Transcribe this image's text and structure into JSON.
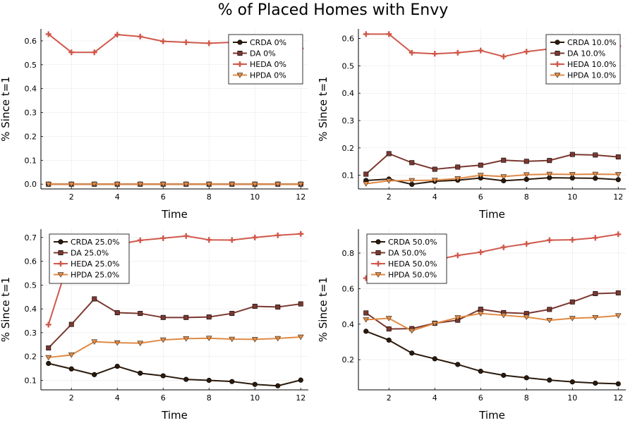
{
  "figure": {
    "title": "% of Placed Homes with Envy"
  },
  "colors": {
    "CRDA": "#2b1a0c",
    "DA": "#7b3830",
    "HEDA": "#d0584b",
    "HPDA": "#e08a45"
  },
  "chart_data": [
    {
      "type": "line",
      "xlabel": "Time",
      "ylabel": "% Since t=1",
      "xlim": [
        0.67,
        12.33
      ],
      "xticks": [
        2,
        4,
        6,
        8,
        10,
        12
      ],
      "ylim": [
        -0.02,
        0.65
      ],
      "yticks": [
        0.0,
        0.1,
        0.2,
        0.3,
        0.4,
        0.5,
        0.6
      ],
      "ytick_labels": [
        "0.0",
        "0.1",
        "0.2",
        "0.3",
        "0.4",
        "0.5",
        "0.6"
      ],
      "grid": true,
      "legend_position": "top-right",
      "x": [
        1,
        2,
        3,
        4,
        5,
        6,
        7,
        8,
        9,
        10,
        11,
        12
      ],
      "series": [
        {
          "name": "CRDA 0%",
          "key": "CRDA",
          "marker": "circle",
          "values": [
            0,
            0,
            0,
            0,
            0,
            0,
            0,
            0,
            0,
            0,
            0,
            0
          ]
        },
        {
          "name": "DA 0%",
          "key": "DA",
          "marker": "square",
          "values": [
            0,
            0,
            0,
            0,
            0,
            0,
            0,
            0,
            0,
            0,
            0,
            0
          ]
        },
        {
          "name": "HEDA 0%",
          "key": "HEDA",
          "marker": "cross",
          "values": [
            0.628,
            0.552,
            0.552,
            0.626,
            0.618,
            0.598,
            0.594,
            0.59,
            0.594,
            0.604,
            0.594,
            0.568
          ]
        },
        {
          "name": "HPDA 0%",
          "key": "HPDA",
          "marker": "triangle-down",
          "values": [
            0,
            0,
            0,
            0,
            0,
            0,
            0,
            0,
            0,
            0,
            0,
            0
          ]
        }
      ]
    },
    {
      "type": "line",
      "xlabel": "Time",
      "ylabel": "% Since t=1",
      "xlim": [
        0.67,
        12.33
      ],
      "xticks": [
        2,
        4,
        6,
        8,
        10,
        12
      ],
      "ylim": [
        0.05,
        0.635
      ],
      "yticks": [
        0.1,
        0.2,
        0.3,
        0.4,
        0.5,
        0.6
      ],
      "ytick_labels": [
        "0.1",
        "0.2",
        "0.3",
        "0.4",
        "0.5",
        "0.6"
      ],
      "grid": true,
      "legend_position": "top-right",
      "x": [
        1,
        2,
        3,
        4,
        5,
        6,
        7,
        8,
        9,
        10,
        11,
        12
      ],
      "series": [
        {
          "name": "CRDA 10.0%",
          "key": "CRDA",
          "marker": "circle",
          "values": [
            0.081,
            0.086,
            0.067,
            0.078,
            0.082,
            0.09,
            0.08,
            0.085,
            0.091,
            0.09,
            0.089,
            0.084
          ]
        },
        {
          "name": "DA 10.0%",
          "key": "DA",
          "marker": "square",
          "values": [
            0.104,
            0.179,
            0.146,
            0.122,
            0.13,
            0.137,
            0.155,
            0.151,
            0.154,
            0.176,
            0.174,
            0.167
          ]
        },
        {
          "name": "HEDA 10.0%",
          "key": "HEDA",
          "marker": "cross",
          "values": [
            0.616,
            0.616,
            0.548,
            0.544,
            0.548,
            0.556,
            0.534,
            0.552,
            0.562,
            0.566,
            0.57,
            0.572
          ]
        },
        {
          "name": "HPDA 10.0%",
          "key": "HPDA",
          "marker": "triangle-down",
          "values": [
            0.069,
            0.08,
            0.081,
            0.082,
            0.088,
            0.1,
            0.095,
            0.102,
            0.104,
            0.103,
            0.104,
            0.103
          ]
        }
      ]
    },
    {
      "type": "line",
      "xlabel": "Time",
      "ylabel": "% Since t=1",
      "xlim": [
        0.67,
        12.33
      ],
      "xticks": [
        2,
        4,
        6,
        8,
        10,
        12
      ],
      "ylim": [
        0.06,
        0.735
      ],
      "yticks": [
        0.1,
        0.2,
        0.3,
        0.4,
        0.5,
        0.6,
        0.7
      ],
      "ytick_labels": [
        "0.1",
        "0.2",
        "0.3",
        "0.4",
        "0.5",
        "0.6",
        "0.7"
      ],
      "grid": true,
      "legend_position": "top-left",
      "x": [
        1,
        2,
        3,
        4,
        5,
        6,
        7,
        8,
        9,
        10,
        11,
        12
      ],
      "series": [
        {
          "name": "CRDA 25.0%",
          "key": "CRDA",
          "marker": "circle",
          "values": [
            0.171,
            0.148,
            0.124,
            0.159,
            0.13,
            0.119,
            0.104,
            0.1,
            0.095,
            0.083,
            0.077,
            0.101
          ]
        },
        {
          "name": "DA 25.0%",
          "key": "DA",
          "marker": "square",
          "values": [
            0.236,
            0.335,
            0.442,
            0.384,
            0.381,
            0.364,
            0.364,
            0.366,
            0.381,
            0.411,
            0.408,
            0.421
          ]
        },
        {
          "name": "HEDA 25.0%",
          "key": "HEDA",
          "marker": "cross",
          "values": [
            0.334,
            0.64,
            0.66,
            0.67,
            0.688,
            0.697,
            0.706,
            0.69,
            0.689,
            0.7,
            0.709,
            0.715
          ]
        },
        {
          "name": "HPDA 25.0%",
          "key": "HPDA",
          "marker": "triangle-down",
          "values": [
            0.196,
            0.207,
            0.262,
            0.258,
            0.256,
            0.27,
            0.275,
            0.277,
            0.273,
            0.272,
            0.276,
            0.282
          ]
        }
      ]
    },
    {
      "type": "line",
      "xlabel": "Time",
      "ylabel": "% Since t=1",
      "xlim": [
        0.67,
        12.33
      ],
      "xticks": [
        2,
        4,
        6,
        8,
        10,
        12
      ],
      "ylim": [
        0.03,
        0.935
      ],
      "yticks": [
        0.2,
        0.4,
        0.6,
        0.8
      ],
      "ytick_labels": [
        "0.2",
        "0.4",
        "0.6",
        "0.8"
      ],
      "grid": true,
      "legend_position": "top-left",
      "x": [
        1,
        2,
        3,
        4,
        5,
        6,
        7,
        8,
        9,
        10,
        11,
        12
      ],
      "series": [
        {
          "name": "CRDA 50.0%",
          "key": "CRDA",
          "marker": "circle",
          "values": [
            0.36,
            0.31,
            0.237,
            0.205,
            0.173,
            0.135,
            0.112,
            0.098,
            0.085,
            0.075,
            0.068,
            0.064
          ]
        },
        {
          "name": "DA 50.0%",
          "key": "DA",
          "marker": "square",
          "values": [
            0.463,
            0.373,
            0.375,
            0.405,
            0.422,
            0.484,
            0.465,
            0.46,
            0.483,
            0.525,
            0.572,
            0.576
          ]
        },
        {
          "name": "HEDA 50.0%",
          "key": "HEDA",
          "marker": "cross",
          "values": [
            0.659,
            0.69,
            0.73,
            0.76,
            0.787,
            0.805,
            0.833,
            0.852,
            0.873,
            0.875,
            0.886,
            0.906
          ]
        },
        {
          "name": "HPDA 50.0%",
          "key": "HPDA",
          "marker": "triangle-down",
          "values": [
            0.425,
            0.433,
            0.363,
            0.404,
            0.437,
            0.46,
            0.45,
            0.44,
            0.422,
            0.433,
            0.438,
            0.448
          ]
        }
      ]
    }
  ]
}
